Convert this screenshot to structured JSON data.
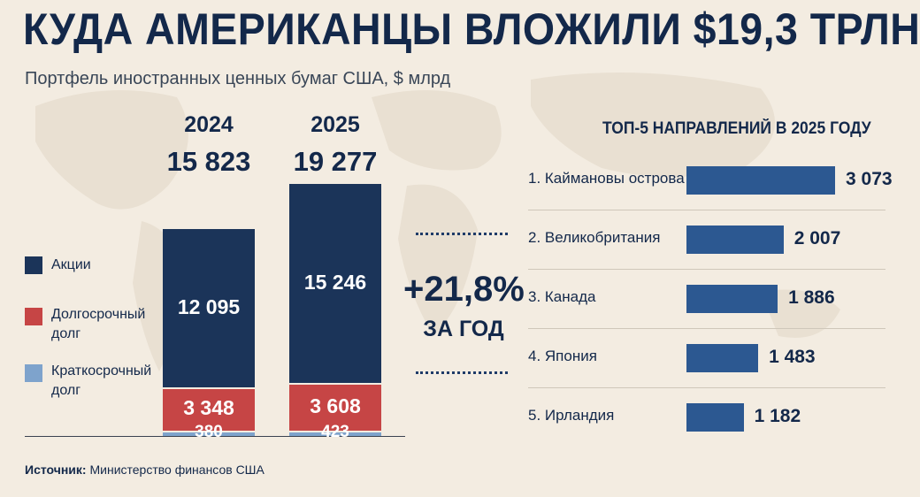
{
  "title": "КУДА АМЕРИКАНЦЫ ВЛОЖИЛИ $19,3 ТРЛН",
  "subtitle": "Портфель иностранных ценных бумаг США, $ млрд",
  "legend": [
    {
      "label": "Акции",
      "color": "#1b3459"
    },
    {
      "label": "Долгосрочный\nдолг",
      "color": "#c64545"
    },
    {
      "label": "Краткосрочный\nдолг",
      "color": "#7ea3cc"
    }
  ],
  "growth": {
    "value": "+21,8%",
    "caption": "ЗА ГОД"
  },
  "top_heading": "ТОП-5 НАПРАВЛЕНИЙ В 2025 ГОДУ",
  "source": {
    "label": "Источник:",
    "text": "Министерство финансов США"
  },
  "chart_data": [
    {
      "type": "bar",
      "stacked": true,
      "categories": [
        "2024",
        "2025"
      ],
      "totals": [
        "15 823",
        "19 277"
      ],
      "series": [
        {
          "name": "Акции",
          "values": [
            12095,
            15246
          ],
          "labels": [
            "12 095",
            "15 246"
          ],
          "color": "#1b3459"
        },
        {
          "name": "Долгосрочный долг",
          "values": [
            3348,
            3608
          ],
          "labels": [
            "3 348",
            "3 608"
          ],
          "color": "#c64545"
        },
        {
          "name": "Краткосрочный долг",
          "values": [
            380,
            423
          ],
          "labels": [
            "380",
            "423"
          ],
          "color": "#7ea3cc"
        }
      ],
      "ylim": [
        0,
        19277
      ],
      "grid": false,
      "legend_position": "left"
    },
    {
      "type": "bar",
      "orientation": "horizontal",
      "title": "ТОП-5 НАПРАВЛЕНИЙ В 2025 ГОДУ",
      "categories": [
        "1. Каймановы острова",
        "2. Великобритания",
        "3. Канада",
        "4. Япония",
        "5. Ирландия"
      ],
      "values": [
        3073,
        2007,
        1886,
        1483,
        1182
      ],
      "value_labels": [
        "3 073",
        "2 007",
        "1 886",
        "1 483",
        "1 182"
      ],
      "color": "#2c5891",
      "grid": false
    }
  ]
}
